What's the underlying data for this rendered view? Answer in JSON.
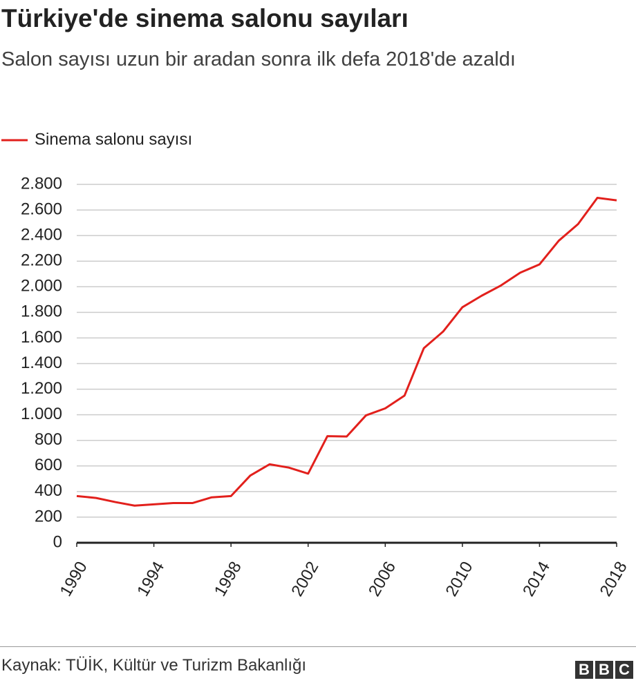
{
  "chart_data": {
    "type": "line",
    "title": "Türkiye'de sinema salonu sayıları",
    "subtitle": "Salon sayısı uzun bir aradan sonra ilk defa 2018'de azaldı",
    "source": "Kaynak: TÜİK, Kültür ve Turizm Bakanlığı",
    "logo": [
      "B",
      "B",
      "C"
    ],
    "x": [
      1990,
      1991,
      1992,
      1993,
      1994,
      1995,
      1996,
      1997,
      1998,
      1999,
      2000,
      2001,
      2002,
      2003,
      2004,
      2005,
      2006,
      2007,
      2008,
      2009,
      2010,
      2011,
      2012,
      2013,
      2014,
      2015,
      2016,
      2017,
      2018
    ],
    "series": [
      {
        "name": "Sinema salonu sayısı",
        "color": "#e2201c",
        "values": [
          365,
          350,
          318,
          290,
          300,
          310,
          310,
          355,
          365,
          525,
          613,
          587,
          540,
          833,
          830,
          995,
          1050,
          1150,
          1520,
          1650,
          1840,
          1930,
          2010,
          2110,
          2175,
          2360,
          2490,
          2695,
          2675
        ]
      }
    ],
    "xlim": [
      1990,
      2018
    ],
    "xticks": [
      1990,
      1994,
      1998,
      2002,
      2006,
      2010,
      2014,
      2018
    ],
    "ylim": [
      0,
      2800
    ],
    "yticks": [
      0,
      200,
      400,
      600,
      800,
      {
        "value": 1000,
        "label": "1.000"
      },
      {
        "value": 1200,
        "label": "1.200"
      },
      {
        "value": 1400,
        "label": "1.400"
      },
      {
        "value": 1600,
        "label": "1.600"
      },
      {
        "value": 1800,
        "label": "1.800"
      },
      {
        "value": 2000,
        "label": "2.000"
      },
      {
        "value": 2200,
        "label": "2.200"
      },
      {
        "value": 2400,
        "label": "2.400"
      },
      {
        "value": 2600,
        "label": "2.600"
      },
      {
        "value": 2800,
        "label": "2.800"
      }
    ],
    "grid": true
  }
}
